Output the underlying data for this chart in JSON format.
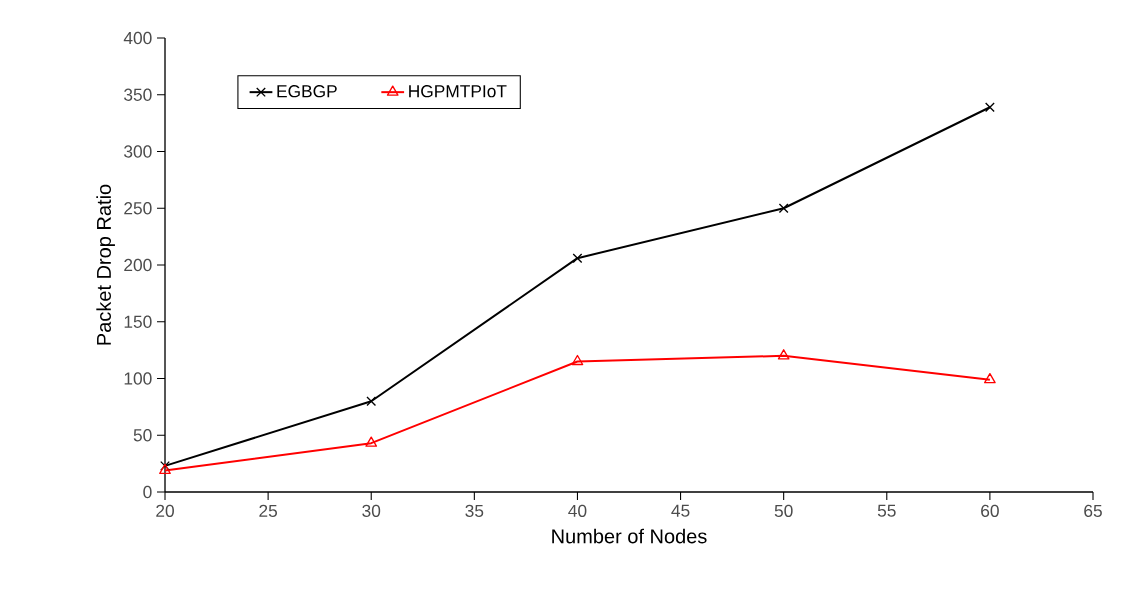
{
  "chart_data": {
    "type": "line",
    "xlabel": "Number of Nodes",
    "ylabel": "Packet Drop Ratio",
    "x": [
      20,
      30,
      40,
      50,
      60
    ],
    "series": [
      {
        "name": "EGBGP",
        "color": "#000000",
        "marker": "cross",
        "values": [
          23,
          80,
          206,
          250,
          339
        ]
      },
      {
        "name": "HGPMTPIoT",
        "color": "#ff0000",
        "marker": "triangle",
        "values": [
          19,
          43,
          115,
          120,
          99
        ]
      }
    ],
    "xlim": [
      20,
      65
    ],
    "xticks": [
      20,
      25,
      30,
      35,
      40,
      45,
      50,
      55,
      60,
      65
    ],
    "ylim": [
      0,
      400
    ],
    "yticks": [
      0,
      50,
      100,
      150,
      200,
      250,
      300,
      350,
      400
    ],
    "grid": false,
    "legend": "top left",
    "line_style": "solid"
  }
}
